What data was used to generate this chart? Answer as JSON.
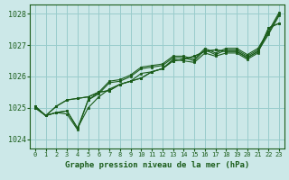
{
  "title": "Graphe pression niveau de la mer (hPa)",
  "bg_color": "#cce8e8",
  "grid_color": "#99cccc",
  "line_color": "#1a5c1a",
  "marker_color": "#1a5c1a",
  "xlim": [
    -0.5,
    23.5
  ],
  "ylim": [
    1023.7,
    1028.3
  ],
  "yticks": [
    1024,
    1025,
    1026,
    1027,
    1028
  ],
  "xticks": [
    0,
    1,
    2,
    3,
    4,
    5,
    6,
    7,
    8,
    9,
    10,
    11,
    12,
    13,
    14,
    15,
    16,
    17,
    18,
    19,
    20,
    21,
    22,
    23
  ],
  "series": [
    [
      1025.05,
      1024.75,
      1024.85,
      1024.9,
      1024.35,
      1025.25,
      1025.5,
      1025.85,
      1025.9,
      1026.05,
      1026.3,
      1026.35,
      1026.4,
      1026.65,
      1026.65,
      1026.55,
      1026.9,
      1026.75,
      1026.9,
      1026.9,
      1026.7,
      1026.9,
      1027.45,
      1028.05
    ],
    [
      1025.05,
      1024.75,
      1024.85,
      1024.9,
      1024.35,
      1025.0,
      1025.35,
      1025.6,
      1025.75,
      1025.85,
      1026.1,
      1026.15,
      1026.25,
      1026.55,
      1026.5,
      1026.45,
      1026.75,
      1026.65,
      1026.75,
      1026.75,
      1026.55,
      1026.75,
      1027.55,
      1027.7
    ],
    [
      1025.05,
      1024.75,
      1025.05,
      1025.25,
      1025.3,
      1025.35,
      1025.5,
      1025.55,
      1025.75,
      1025.85,
      1025.95,
      1026.15,
      1026.25,
      1026.5,
      1026.55,
      1026.65,
      1026.8,
      1026.85,
      1026.8,
      1026.8,
      1026.6,
      1026.8,
      1027.35,
      1027.95
    ],
    [
      1025.0,
      1024.75,
      1025.05,
      1025.25,
      1025.3,
      1025.35,
      1025.5,
      1025.55,
      1025.75,
      1025.85,
      1025.95,
      1026.15,
      1026.25,
      1026.5,
      1026.55,
      1026.65,
      1026.8,
      1026.85,
      1026.8,
      1026.8,
      1026.6,
      1026.8,
      1027.55,
      1027.7
    ],
    [
      1025.0,
      1024.75,
      1024.85,
      1024.8,
      1024.3,
      1025.25,
      1025.45,
      1025.8,
      1025.85,
      1026.0,
      1026.25,
      1026.3,
      1026.35,
      1026.6,
      1026.6,
      1026.5,
      1026.85,
      1026.7,
      1026.85,
      1026.85,
      1026.65,
      1026.85,
      1027.4,
      1028.0
    ]
  ]
}
